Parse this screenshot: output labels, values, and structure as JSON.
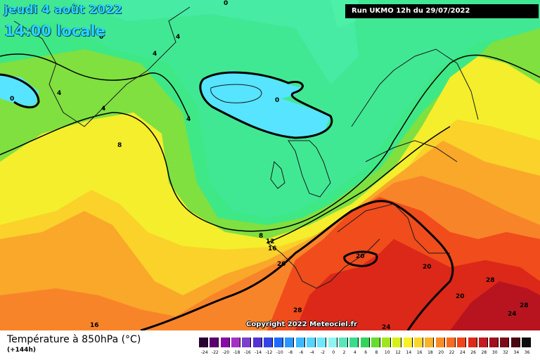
{
  "header": {
    "date": "jeudi 4 août 2022",
    "time": "14:00 locale",
    "run": "Run UKMO 12h du 29/07/2022"
  },
  "map": {
    "copyright": "Copyright 2022 Meteociel.fr",
    "contour_labels": [
      "0",
      "0",
      "0",
      "0",
      "4",
      "4",
      "4",
      "4",
      "4",
      "8",
      "8",
      "12",
      "16",
      "16",
      "20",
      "20",
      "20",
      "20",
      "20",
      "24",
      "24",
      "28",
      "28",
      "28"
    ]
  },
  "footer": {
    "title": "Température à 850hPa (°C)",
    "forecast": "(+144h)"
  },
  "legend": {
    "ticks": [
      "-24",
      "-22",
      "-20",
      "-18",
      "-16",
      "-14",
      "-12",
      "-10",
      "-8",
      "-6",
      "-4",
      "-2",
      "0",
      "2",
      "4",
      "6",
      "8",
      "10",
      "12",
      "14",
      "16",
      "18",
      "20",
      "22",
      "24",
      "26",
      "28",
      "30",
      "32",
      "34",
      "36"
    ],
    "colors": [
      "#2a0033",
      "#5a006f",
      "#8a0aa6",
      "#a332c4",
      "#7d3fcc",
      "#5433d0",
      "#3246e6",
      "#1e6cff",
      "#2c96ff",
      "#3cb8ff",
      "#55d4ff",
      "#6fe8ff",
      "#8ff5f0",
      "#59e6ba",
      "#39dc8c",
      "#34d45a",
      "#64dc30",
      "#a0e620",
      "#d6f01a",
      "#f8f02a",
      "#fad62a",
      "#fab22a",
      "#fa8c28",
      "#f86a20",
      "#f24418",
      "#e02818",
      "#c41a20",
      "#a0101e",
      "#7c0c18",
      "#4c0810",
      "#0c0c0c"
    ]
  }
}
